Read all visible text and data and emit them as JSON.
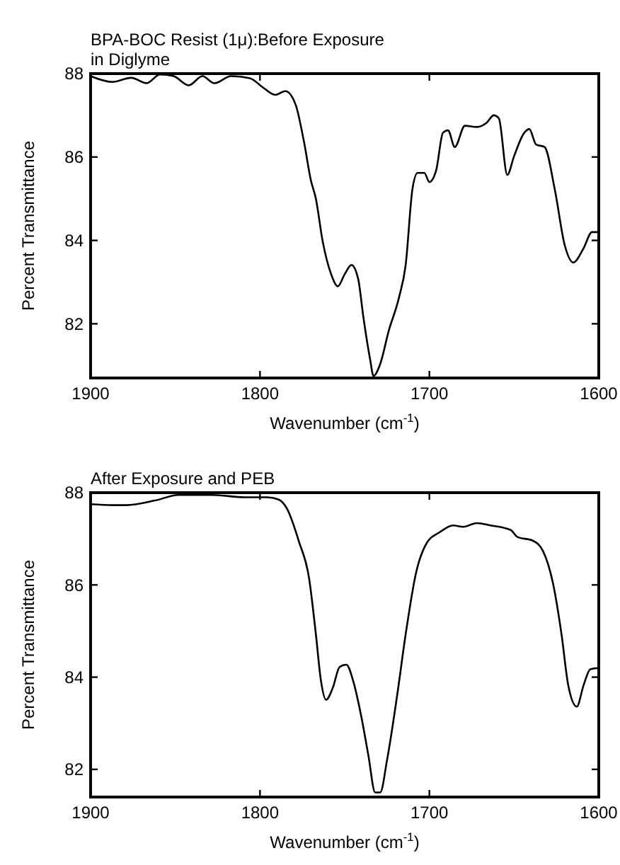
{
  "chart_data": [
    {
      "type": "line",
      "title": "BPA-BOC Resist (1μ):Before Exposure\nin Diglyme",
      "xlabel": "Wavenumber (cm$^{-1}$)",
      "ylabel": "Percent Transmittance",
      "xlim": [
        1900,
        1600
      ],
      "xticks": [
        1900,
        1800,
        1700,
        1600
      ],
      "ylim": [
        80.7,
        88
      ],
      "yticks": [
        82,
        84,
        86,
        88
      ],
      "grid": false,
      "marker": "none",
      "line_style": "solid",
      "series": [
        {
          "color": "#000000",
          "x": [
            1900,
            1887,
            1876,
            1867,
            1859,
            1851,
            1842,
            1834,
            1827,
            1817,
            1806,
            1798,
            1791,
            1785,
            1779,
            1774,
            1770,
            1767,
            1763,
            1758,
            1754,
            1750,
            1746,
            1742,
            1739,
            1735,
            1733,
            1729,
            1724,
            1718,
            1714,
            1710,
            1707,
            1703,
            1700,
            1696,
            1692,
            1689,
            1685,
            1679,
            1672,
            1666,
            1662,
            1659,
            1654,
            1650,
            1644,
            1641,
            1637,
            1632,
            1626,
            1620,
            1615,
            1609,
            1604,
            1600
          ],
          "values": [
            87.94,
            87.8,
            87.9,
            87.77,
            87.98,
            87.94,
            87.72,
            87.94,
            87.77,
            87.94,
            87.89,
            87.66,
            87.49,
            87.58,
            87.26,
            86.36,
            85.45,
            85.0,
            83.98,
            83.19,
            82.9,
            83.19,
            83.41,
            83.07,
            82.17,
            81.15,
            80.75,
            81.04,
            81.83,
            82.62,
            83.41,
            85.23,
            85.62,
            85.62,
            85.4,
            85.68,
            86.58,
            86.64,
            86.24,
            86.75,
            86.72,
            86.83,
            87.0,
            86.93,
            85.57,
            86.02,
            86.58,
            86.67,
            86.3,
            86.24,
            85.23,
            83.87,
            83.47,
            83.81,
            84.2,
            84.2
          ]
        }
      ]
    },
    {
      "type": "line",
      "title": "After Exposure and PEB",
      "xlabel": "Wavenumber (cm$^{-1}$)",
      "ylabel": "Percent Transmittance",
      "xlim": [
        1900,
        1600
      ],
      "xticks": [
        1900,
        1800,
        1700,
        1600
      ],
      "ylim": [
        81.4,
        88
      ],
      "yticks": [
        82,
        84,
        86,
        88
      ],
      "grid": false,
      "marker": "none",
      "line_style": "solid",
      "series": [
        {
          "color": "#000000",
          "x": [
            1900,
            1887,
            1879,
            1862,
            1848,
            1828,
            1809,
            1796,
            1789,
            1784,
            1777,
            1771,
            1767,
            1764,
            1761,
            1757,
            1753,
            1749,
            1745,
            1740,
            1736,
            1732,
            1729,
            1725,
            1719,
            1714,
            1708,
            1701,
            1694,
            1686,
            1680,
            1672,
            1664,
            1652,
            1648,
            1639,
            1633,
            1627,
            1622,
            1618,
            1613,
            1609,
            1605,
            1600
          ],
          "values": [
            87.75,
            87.73,
            87.73,
            87.83,
            87.95,
            87.95,
            87.9,
            87.9,
            87.85,
            87.65,
            86.94,
            86.14,
            84.93,
            83.92,
            83.51,
            83.77,
            84.22,
            84.27,
            83.92,
            83.11,
            82.3,
            81.5,
            81.5,
            82.2,
            83.61,
            84.93,
            86.24,
            86.94,
            87.14,
            87.29,
            87.26,
            87.34,
            87.29,
            87.19,
            87.04,
            86.96,
            86.74,
            86.03,
            84.93,
            83.82,
            83.36,
            83.82,
            84.17,
            84.2
          ]
        }
      ]
    }
  ]
}
